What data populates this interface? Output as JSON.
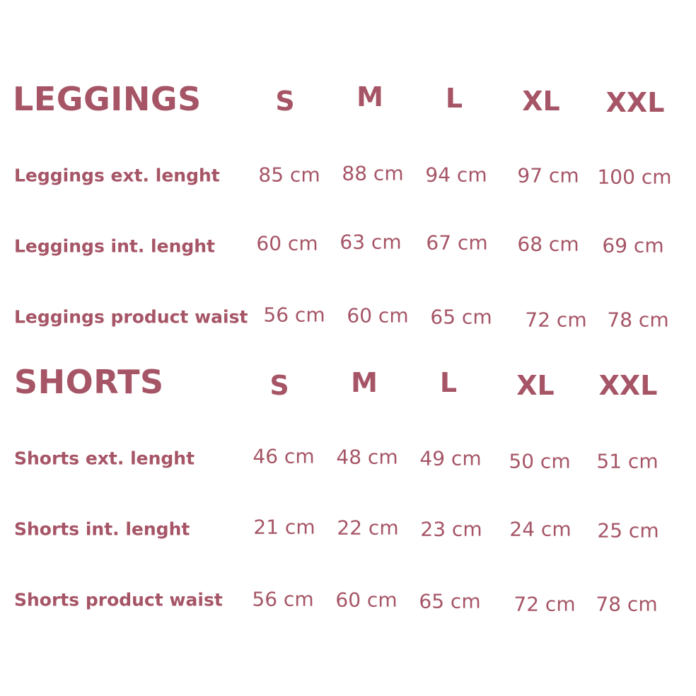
{
  "accent_color": "#a65566",
  "sections": [
    {
      "title": "LEGGINGS",
      "sizes": [
        "S",
        "M",
        "L",
        "XL",
        "XXL"
      ],
      "rows": [
        {
          "label": "Leggings ext. lenght",
          "values": [
            "85 cm",
            "88 cm",
            "94 cm",
            "97 cm",
            "100 cm"
          ]
        },
        {
          "label": "Leggings int. lenght",
          "values": [
            "60 cm",
            "63 cm",
            "67 cm",
            "68 cm",
            "69 cm"
          ]
        },
        {
          "label": "Leggings product waist",
          "values": [
            "56 cm",
            "60 cm",
            "65 cm",
            "72 cm",
            "78 cm"
          ]
        }
      ]
    },
    {
      "title": "SHORTS",
      "sizes": [
        "S",
        "M",
        "L",
        "XL",
        "XXL"
      ],
      "rows": [
        {
          "label": "Shorts ext. lenght",
          "values": [
            "46 cm",
            "48 cm",
            "49 cm",
            "50 cm",
            "51 cm"
          ]
        },
        {
          "label": "Shorts int. lenght",
          "values": [
            "21 cm",
            "22 cm",
            "23 cm",
            "24 cm",
            "25 cm"
          ]
        },
        {
          "label": "Shorts product waist",
          "values": [
            "56 cm",
            "60 cm",
            "65 cm",
            "72 cm",
            "78 cm"
          ]
        }
      ]
    }
  ]
}
